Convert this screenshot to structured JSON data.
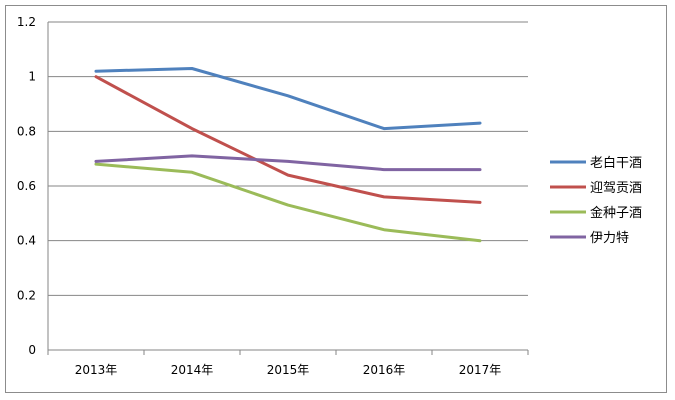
{
  "chart_data": {
    "type": "line",
    "categories": [
      "2013年",
      "2014年",
      "2015年",
      "2016年",
      "2017年"
    ],
    "y_ticks": [
      "0",
      "0.2",
      "0.4",
      "0.6",
      "0.8",
      "1",
      "1.2"
    ],
    "ylim": [
      0,
      1.2
    ],
    "grid": true,
    "legend_position": "right",
    "series": [
      {
        "name": "老白干酒",
        "color": "#4f81bd",
        "values": [
          1.02,
          1.03,
          0.93,
          0.81,
          0.83
        ]
      },
      {
        "name": "迎驾贡酒",
        "color": "#c0504d",
        "values": [
          1.0,
          0.81,
          0.64,
          0.56,
          0.54
        ]
      },
      {
        "name": "金种子酒",
        "color": "#9bbb59",
        "values": [
          0.68,
          0.65,
          0.53,
          0.44,
          0.4
        ]
      },
      {
        "name": "伊力特",
        "color": "#8064a2",
        "values": [
          0.69,
          0.71,
          0.69,
          0.66,
          0.66
        ]
      }
    ]
  }
}
